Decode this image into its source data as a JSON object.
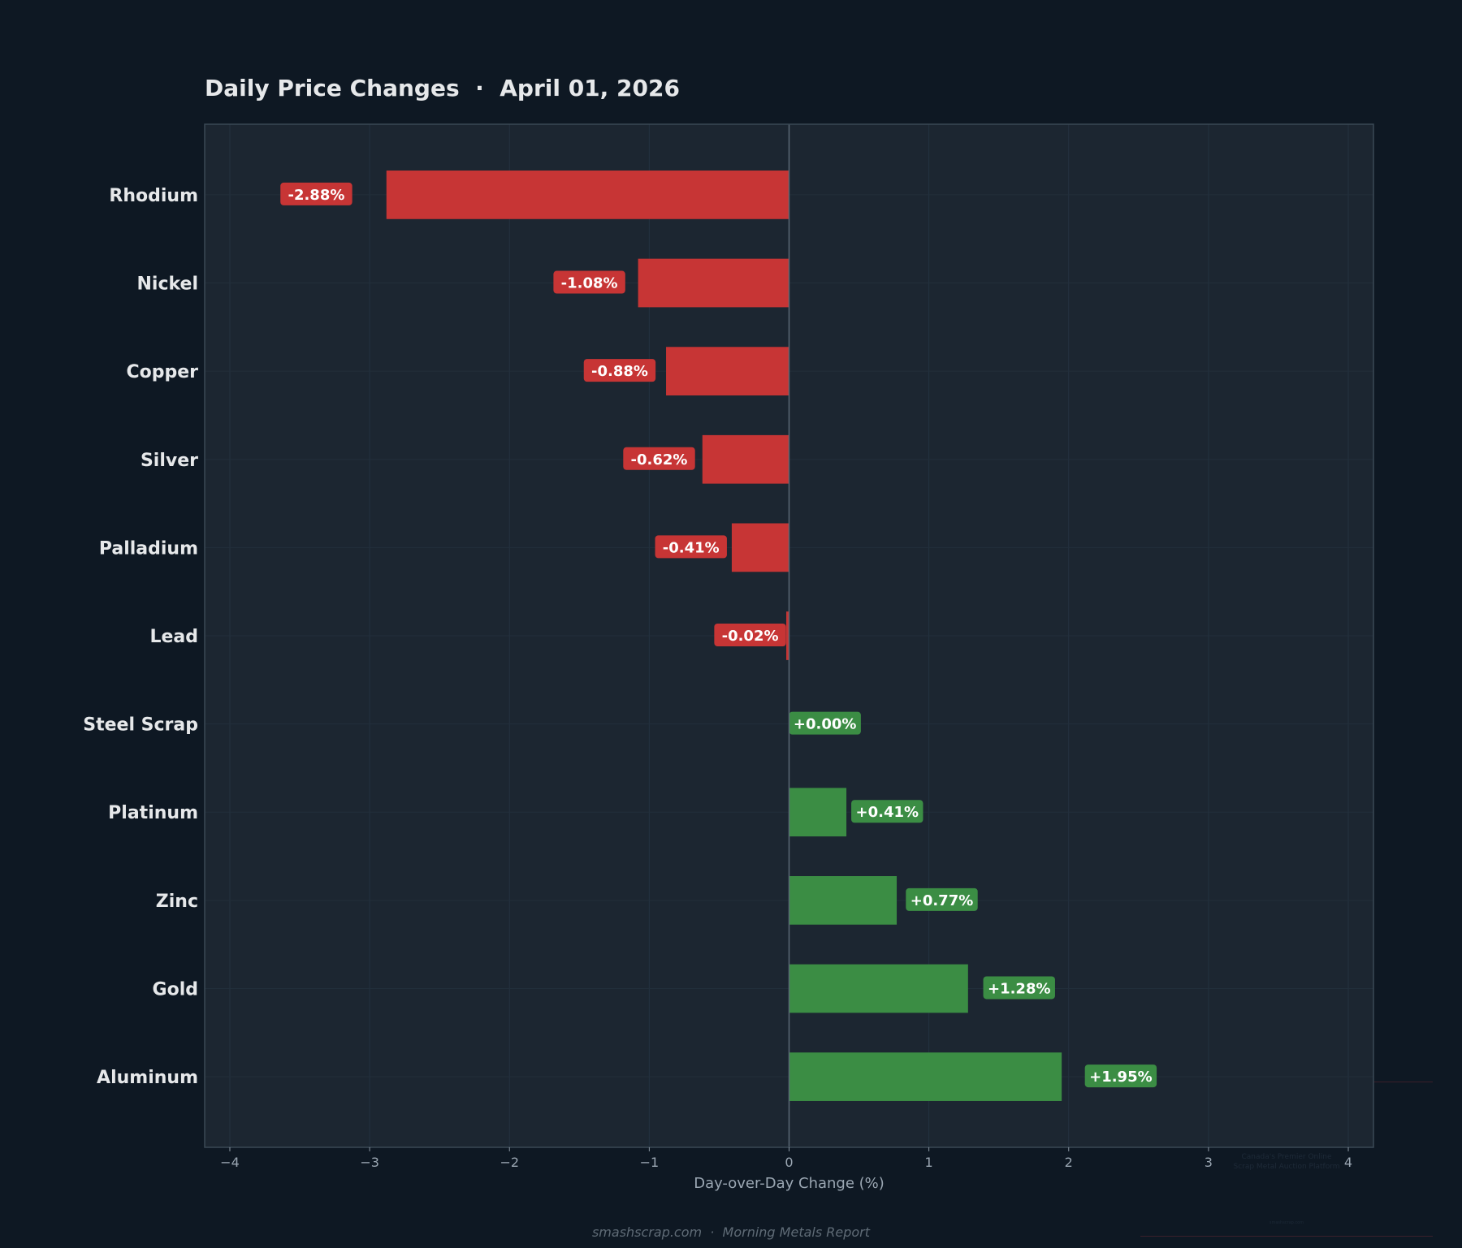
{
  "chart_data": {
    "type": "bar",
    "orientation": "horizontal",
    "title": "Daily Price Changes  ·  April 01, 2026",
    "xlabel": "Day-over-Day Change (%)",
    "ylabel": "",
    "categories": [
      "Rhodium",
      "Nickel",
      "Copper",
      "Silver",
      "Palladium",
      "Lead",
      "Steel Scrap",
      "Platinum",
      "Zinc",
      "Gold",
      "Aluminum"
    ],
    "values": [
      -2.88,
      -1.08,
      -0.88,
      -0.62,
      -0.41,
      -0.02,
      0.0,
      0.41,
      0.77,
      1.28,
      1.95
    ],
    "data_labels": [
      "-2.88%",
      "-1.08%",
      "-0.88%",
      "-0.62%",
      "-0.41%",
      "-0.02%",
      "+0.00%",
      "+0.41%",
      "+0.77%",
      "+1.28%",
      "+1.95%"
    ],
    "xlim": [
      -4.18,
      4.18
    ],
    "xticks": [
      -4,
      -3,
      -2,
      -1,
      0,
      1,
      2,
      3,
      4
    ],
    "xtick_labels": [
      "−4",
      "−3",
      "−2",
      "−1",
      "0",
      "1",
      "2",
      "3",
      "4"
    ],
    "grid": true,
    "colors": {
      "negative": "#c73535",
      "positive": "#3b8d44",
      "background": "#0e1823",
      "plot_background": "#1c2631"
    }
  },
  "footer": "smashscrap.com  ·  Morning Metals Report",
  "watermark": {
    "line1": "Canada's Premier Online",
    "line2": "Scrap Metal Auction Platform",
    "site": "smashscrap.com"
  }
}
